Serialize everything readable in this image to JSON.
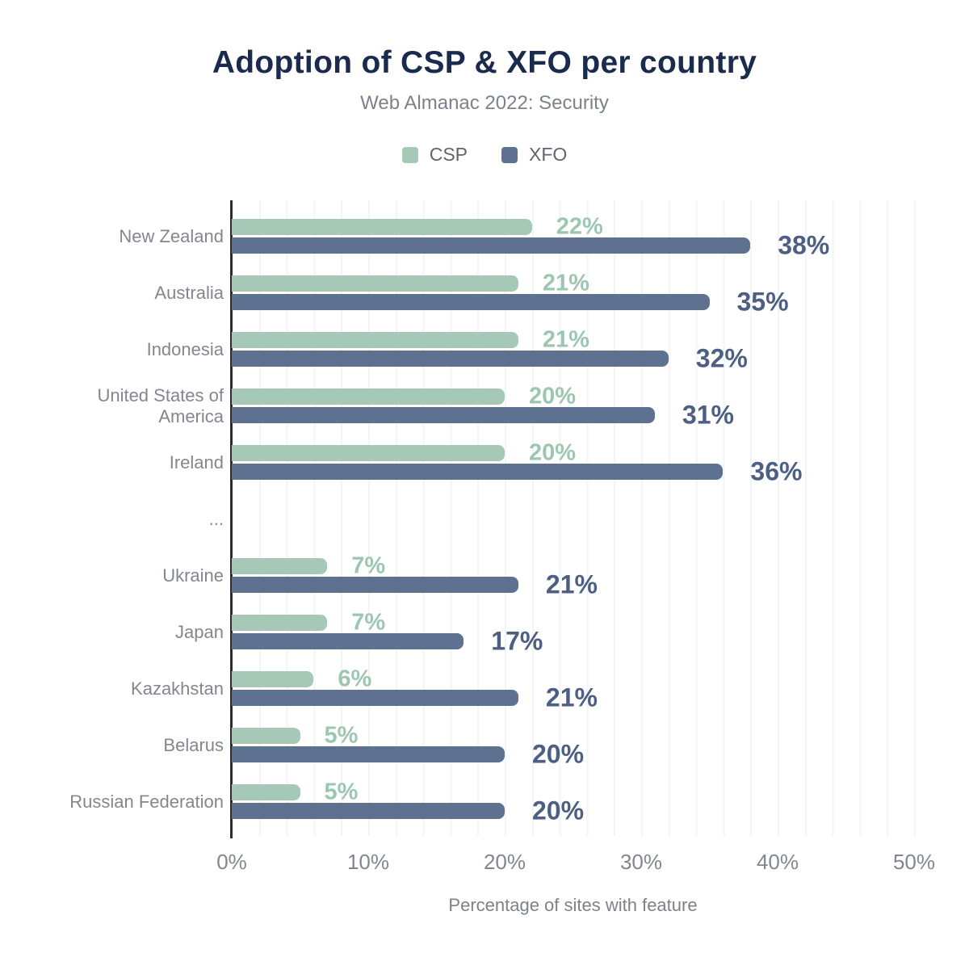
{
  "chart_data": {
    "type": "bar",
    "orientation": "horizontal",
    "title": "Adoption of CSP & XFO per country",
    "subtitle": "Web Almanac 2022: Security",
    "categories": [
      "New Zealand",
      "Australia",
      "Indonesia",
      "United States of America",
      "Ireland",
      "...",
      "Ukraine",
      "Japan",
      "Kazakhstan",
      "Belarus",
      "Russian Federation"
    ],
    "series": [
      {
        "name": "CSP",
        "color": "#a5c9b6",
        "label_color": "#9dc6b1",
        "values": [
          22,
          21,
          21,
          20,
          20,
          null,
          7,
          7,
          6,
          5,
          5
        ]
      },
      {
        "name": "XFO",
        "color": "#5e7190",
        "label_color": "#4d5f83",
        "values": [
          38,
          35,
          32,
          31,
          36,
          null,
          21,
          17,
          21,
          20,
          20
        ]
      }
    ],
    "value_suffix": "%",
    "xlabel": "Percentage of sites with feature",
    "xlim": [
      0,
      50
    ],
    "xticks": [
      {
        "value": 0,
        "label": "0%"
      },
      {
        "value": 10,
        "label": "10%"
      },
      {
        "value": 20,
        "label": "20%"
      },
      {
        "value": 30,
        "label": "30%"
      },
      {
        "value": 40,
        "label": "40%"
      },
      {
        "value": 50,
        "label": "50%"
      }
    ],
    "grid": "vertical minor gridlines every 2%",
    "legend_position": "top"
  },
  "colors": {
    "title": "#1b2b4d",
    "subtitle": "#7b828c",
    "axis_line": "#2a2e34",
    "tick_label": "#82878f",
    "gridline": "#f2f4f6",
    "csp": "#a5c9b6",
    "xfo": "#5e7190"
  }
}
